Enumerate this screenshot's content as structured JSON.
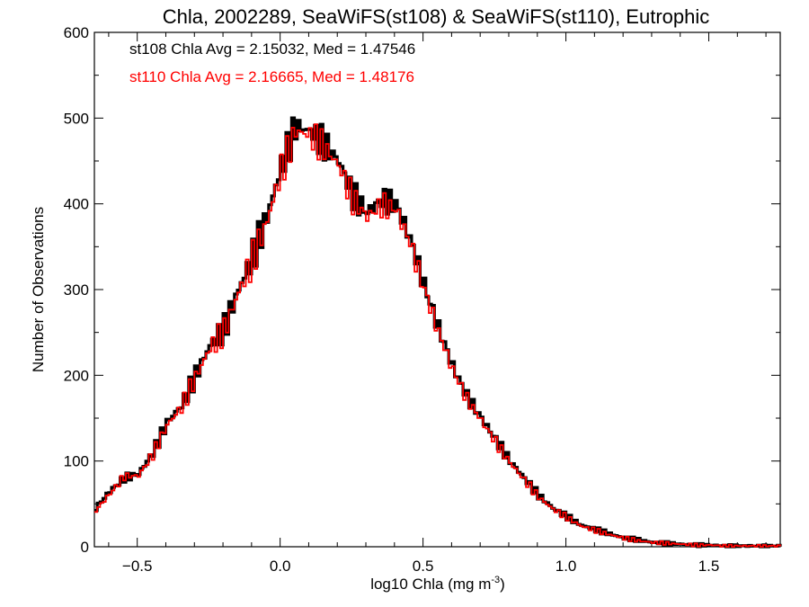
{
  "chart_data": {
    "type": "line",
    "title": "Chla, 2002289, SeaWiFS(st108) & SeaWiFS(st110), Eutrophic",
    "xlabel": "log10 Chla (mg m",
    "xlabel_sup": "-3",
    "xlabel_end": ")",
    "ylabel": "Number of Observations",
    "xlim": [
      -0.65,
      1.75
    ],
    "ylim": [
      0,
      600
    ],
    "xticks": [
      -0.5,
      0.0,
      0.5,
      1.0,
      1.5
    ],
    "xtick_labels": [
      "−0.5",
      "0.0",
      "0.5",
      "1.0",
      "1.5"
    ],
    "yticks": [
      0,
      100,
      200,
      300,
      400,
      500,
      600
    ],
    "ytick_labels": [
      "0",
      "100",
      "200",
      "300",
      "400",
      "500",
      "600"
    ],
    "grid": false,
    "annotations": [
      {
        "text": "st108 Chla Avg = 2.15032, Med = 1.47546",
        "color": "#000000"
      },
      {
        "text": "st110 Chla Avg = 2.16665, Med = 1.48176",
        "color": "#ff0000"
      }
    ],
    "series": [
      {
        "name": "st108",
        "color": "#000000",
        "x": [
          -0.65,
          -0.6,
          -0.55,
          -0.5,
          -0.45,
          -0.4,
          -0.35,
          -0.3,
          -0.25,
          -0.2,
          -0.15,
          -0.1,
          -0.05,
          0.0,
          0.05,
          0.1,
          0.15,
          0.2,
          0.25,
          0.3,
          0.35,
          0.4,
          0.45,
          0.5,
          0.55,
          0.6,
          0.65,
          0.7,
          0.75,
          0.8,
          0.85,
          0.9,
          0.95,
          1.0,
          1.05,
          1.1,
          1.15,
          1.2,
          1.25,
          1.3,
          1.35,
          1.4,
          1.45,
          1.5,
          1.55,
          1.6,
          1.65,
          1.7,
          1.75
        ],
        "y": [
          45,
          65,
          80,
          85,
          110,
          145,
          165,
          200,
          235,
          255,
          300,
          340,
          385,
          445,
          490,
          485,
          470,
          450,
          410,
          390,
          405,
          400,
          360,
          305,
          255,
          210,
          175,
          150,
          125,
          100,
          80,
          60,
          45,
          35,
          25,
          20,
          15,
          10,
          8,
          5,
          4,
          3,
          2,
          2,
          1,
          1,
          1,
          1,
          1
        ]
      },
      {
        "name": "st110",
        "color": "#ff0000",
        "x": [
          -0.65,
          -0.6,
          -0.55,
          -0.5,
          -0.45,
          -0.4,
          -0.35,
          -0.3,
          -0.25,
          -0.2,
          -0.15,
          -0.1,
          -0.05,
          0.0,
          0.05,
          0.1,
          0.15,
          0.2,
          0.25,
          0.3,
          0.35,
          0.4,
          0.45,
          0.5,
          0.55,
          0.6,
          0.65,
          0.7,
          0.75,
          0.8,
          0.85,
          0.9,
          0.95,
          1.0,
          1.05,
          1.1,
          1.15,
          1.2,
          1.25,
          1.3,
          1.35,
          1.4,
          1.45,
          1.5,
          1.55,
          1.6,
          1.65,
          1.7,
          1.75
        ],
        "y": [
          42,
          62,
          82,
          83,
          108,
          142,
          163,
          198,
          232,
          252,
          297,
          336,
          380,
          440,
          485,
          480,
          466,
          445,
          405,
          385,
          398,
          394,
          355,
          300,
          250,
          206,
          172,
          147,
          122,
          98,
          78,
          58,
          44,
          34,
          24,
          19,
          14,
          10,
          7,
          5,
          4,
          3,
          2,
          2,
          1,
          1,
          1,
          1,
          1
        ]
      }
    ]
  }
}
